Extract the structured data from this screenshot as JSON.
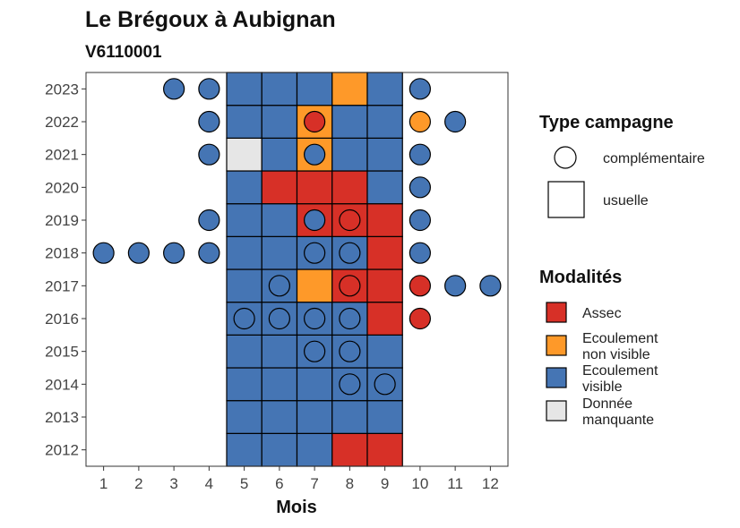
{
  "chart_data": {
    "type": "heatmap",
    "title": "Le Brégoux à Aubignan",
    "subtitle": "V6110001",
    "xlabel": "Mois",
    "ylabel": "",
    "x_ticks": [
      "1",
      "2",
      "3",
      "4",
      "5",
      "6",
      "7",
      "8",
      "9",
      "10",
      "11",
      "12"
    ],
    "y_ticks": [
      "2012",
      "2013",
      "2014",
      "2015",
      "2016",
      "2017",
      "2018",
      "2019",
      "2020",
      "2021",
      "2022",
      "2023"
    ],
    "colors": {
      "Assec": "#d73027",
      "Ecoulement non visible": "#fe9929",
      "Ecoulement visible": "#4575b4",
      "Donnée manquante": "#e6e6e6"
    },
    "legend_type": {
      "title": "Type campagne",
      "items": [
        {
          "label": "complémentaire",
          "shape": "circle"
        },
        {
          "label": "usuelle",
          "shape": "square"
        }
      ]
    },
    "legend_modalites": {
      "title": "Modalités",
      "items": [
        {
          "key": "Assec",
          "lines": [
            "Assec"
          ]
        },
        {
          "key": "Ecoulement non visible",
          "lines": [
            "Ecoulement",
            "non visible"
          ]
        },
        {
          "key": "Ecoulement visible",
          "lines": [
            "Ecoulement",
            "visible"
          ]
        },
        {
          "key": "Donnée manquante",
          "lines": [
            "Donnée",
            "manquante"
          ]
        }
      ]
    },
    "usuelle": [
      {
        "year": 2012,
        "month": 5,
        "value": "Ecoulement visible"
      },
      {
        "year": 2012,
        "month": 6,
        "value": "Ecoulement visible"
      },
      {
        "year": 2012,
        "month": 7,
        "value": "Ecoulement visible"
      },
      {
        "year": 2012,
        "month": 8,
        "value": "Assec"
      },
      {
        "year": 2012,
        "month": 9,
        "value": "Assec"
      },
      {
        "year": 2013,
        "month": 5,
        "value": "Ecoulement visible"
      },
      {
        "year": 2013,
        "month": 6,
        "value": "Ecoulement visible"
      },
      {
        "year": 2013,
        "month": 7,
        "value": "Ecoulement visible"
      },
      {
        "year": 2013,
        "month": 8,
        "value": "Ecoulement visible"
      },
      {
        "year": 2013,
        "month": 9,
        "value": "Ecoulement visible"
      },
      {
        "year": 2014,
        "month": 5,
        "value": "Ecoulement visible"
      },
      {
        "year": 2014,
        "month": 6,
        "value": "Ecoulement visible"
      },
      {
        "year": 2014,
        "month": 7,
        "value": "Ecoulement visible"
      },
      {
        "year": 2014,
        "month": 8,
        "value": "Ecoulement visible"
      },
      {
        "year": 2014,
        "month": 9,
        "value": "Ecoulement visible"
      },
      {
        "year": 2015,
        "month": 5,
        "value": "Ecoulement visible"
      },
      {
        "year": 2015,
        "month": 6,
        "value": "Ecoulement visible"
      },
      {
        "year": 2015,
        "month": 7,
        "value": "Ecoulement visible"
      },
      {
        "year": 2015,
        "month": 8,
        "value": "Ecoulement visible"
      },
      {
        "year": 2015,
        "month": 9,
        "value": "Ecoulement visible"
      },
      {
        "year": 2016,
        "month": 5,
        "value": "Ecoulement visible"
      },
      {
        "year": 2016,
        "month": 6,
        "value": "Ecoulement visible"
      },
      {
        "year": 2016,
        "month": 7,
        "value": "Ecoulement visible"
      },
      {
        "year": 2016,
        "month": 8,
        "value": "Ecoulement visible"
      },
      {
        "year": 2016,
        "month": 9,
        "value": "Assec"
      },
      {
        "year": 2017,
        "month": 5,
        "value": "Ecoulement visible"
      },
      {
        "year": 2017,
        "month": 6,
        "value": "Ecoulement visible"
      },
      {
        "year": 2017,
        "month": 7,
        "value": "Ecoulement non visible"
      },
      {
        "year": 2017,
        "month": 8,
        "value": "Assec"
      },
      {
        "year": 2017,
        "month": 9,
        "value": "Assec"
      },
      {
        "year": 2018,
        "month": 5,
        "value": "Ecoulement visible"
      },
      {
        "year": 2018,
        "month": 6,
        "value": "Ecoulement visible"
      },
      {
        "year": 2018,
        "month": 7,
        "value": "Ecoulement visible"
      },
      {
        "year": 2018,
        "month": 8,
        "value": "Ecoulement visible"
      },
      {
        "year": 2018,
        "month": 9,
        "value": "Assec"
      },
      {
        "year": 2019,
        "month": 5,
        "value": "Ecoulement visible"
      },
      {
        "year": 2019,
        "month": 6,
        "value": "Ecoulement visible"
      },
      {
        "year": 2019,
        "month": 7,
        "value": "Assec"
      },
      {
        "year": 2019,
        "month": 8,
        "value": "Assec"
      },
      {
        "year": 2019,
        "month": 9,
        "value": "Assec"
      },
      {
        "year": 2020,
        "month": 5,
        "value": "Ecoulement visible"
      },
      {
        "year": 2020,
        "month": 6,
        "value": "Assec"
      },
      {
        "year": 2020,
        "month": 7,
        "value": "Assec"
      },
      {
        "year": 2020,
        "month": 8,
        "value": "Assec"
      },
      {
        "year": 2020,
        "month": 9,
        "value": "Ecoulement visible"
      },
      {
        "year": 2021,
        "month": 5,
        "value": "Donnée manquante"
      },
      {
        "year": 2021,
        "month": 6,
        "value": "Ecoulement visible"
      },
      {
        "year": 2021,
        "month": 7,
        "value": "Ecoulement non visible"
      },
      {
        "year": 2021,
        "month": 8,
        "value": "Ecoulement visible"
      },
      {
        "year": 2021,
        "month": 9,
        "value": "Ecoulement visible"
      },
      {
        "year": 2022,
        "month": 5,
        "value": "Ecoulement visible"
      },
      {
        "year": 2022,
        "month": 6,
        "value": "Ecoulement visible"
      },
      {
        "year": 2022,
        "month": 7,
        "value": "Ecoulement non visible"
      },
      {
        "year": 2022,
        "month": 8,
        "value": "Ecoulement visible"
      },
      {
        "year": 2022,
        "month": 9,
        "value": "Ecoulement visible"
      },
      {
        "year": 2023,
        "month": 5,
        "value": "Ecoulement visible"
      },
      {
        "year": 2023,
        "month": 6,
        "value": "Ecoulement visible"
      },
      {
        "year": 2023,
        "month": 7,
        "value": "Ecoulement visible"
      },
      {
        "year": 2023,
        "month": 8,
        "value": "Ecoulement non visible"
      },
      {
        "year": 2023,
        "month": 9,
        "value": "Ecoulement visible"
      }
    ],
    "complementaire": [
      {
        "year": 2023,
        "month": 3,
        "value": "Ecoulement visible"
      },
      {
        "year": 2023,
        "month": 4,
        "value": "Ecoulement visible"
      },
      {
        "year": 2023,
        "month": 10,
        "value": "Ecoulement visible"
      },
      {
        "year": 2022,
        "month": 4,
        "value": "Ecoulement visible"
      },
      {
        "year": 2022,
        "month": 7,
        "value": "Assec"
      },
      {
        "year": 2022,
        "month": 10,
        "value": "Ecoulement non visible"
      },
      {
        "year": 2022,
        "month": 11,
        "value": "Ecoulement visible"
      },
      {
        "year": 2021,
        "month": 4,
        "value": "Ecoulement visible"
      },
      {
        "year": 2021,
        "month": 7,
        "value": "Ecoulement visible"
      },
      {
        "year": 2021,
        "month": 10,
        "value": "Ecoulement visible"
      },
      {
        "year": 2020,
        "month": 10,
        "value": "Ecoulement visible"
      },
      {
        "year": 2019,
        "month": 4,
        "value": "Ecoulement visible"
      },
      {
        "year": 2019,
        "month": 7,
        "value": "Ecoulement visible"
      },
      {
        "year": 2019,
        "month": 8,
        "value": "Assec"
      },
      {
        "year": 2019,
        "month": 10,
        "value": "Ecoulement visible"
      },
      {
        "year": 2018,
        "month": 1,
        "value": "Ecoulement visible"
      },
      {
        "year": 2018,
        "month": 2,
        "value": "Ecoulement visible"
      },
      {
        "year": 2018,
        "month": 3,
        "value": "Ecoulement visible"
      },
      {
        "year": 2018,
        "month": 4,
        "value": "Ecoulement visible"
      },
      {
        "year": 2018,
        "month": 7,
        "value": "Ecoulement visible"
      },
      {
        "year": 2018,
        "month": 8,
        "value": "Ecoulement visible"
      },
      {
        "year": 2018,
        "month": 10,
        "value": "Ecoulement visible"
      },
      {
        "year": 2017,
        "month": 6,
        "value": "Ecoulement visible"
      },
      {
        "year": 2017,
        "month": 8,
        "value": "Assec"
      },
      {
        "year": 2017,
        "month": 10,
        "value": "Assec"
      },
      {
        "year": 2017,
        "month": 11,
        "value": "Ecoulement visible"
      },
      {
        "year": 2017,
        "month": 12,
        "value": "Ecoulement visible"
      },
      {
        "year": 2016,
        "month": 5,
        "value": "Ecoulement visible"
      },
      {
        "year": 2016,
        "month": 6,
        "value": "Ecoulement visible"
      },
      {
        "year": 2016,
        "month": 7,
        "value": "Ecoulement visible"
      },
      {
        "year": 2016,
        "month": 8,
        "value": "Ecoulement visible"
      },
      {
        "year": 2016,
        "month": 10,
        "value": "Assec"
      },
      {
        "year": 2015,
        "month": 7,
        "value": "Ecoulement visible"
      },
      {
        "year": 2015,
        "month": 8,
        "value": "Ecoulement visible"
      },
      {
        "year": 2014,
        "month": 8,
        "value": "Ecoulement visible"
      },
      {
        "year": 2014,
        "month": 9,
        "value": "Ecoulement visible"
      }
    ]
  }
}
